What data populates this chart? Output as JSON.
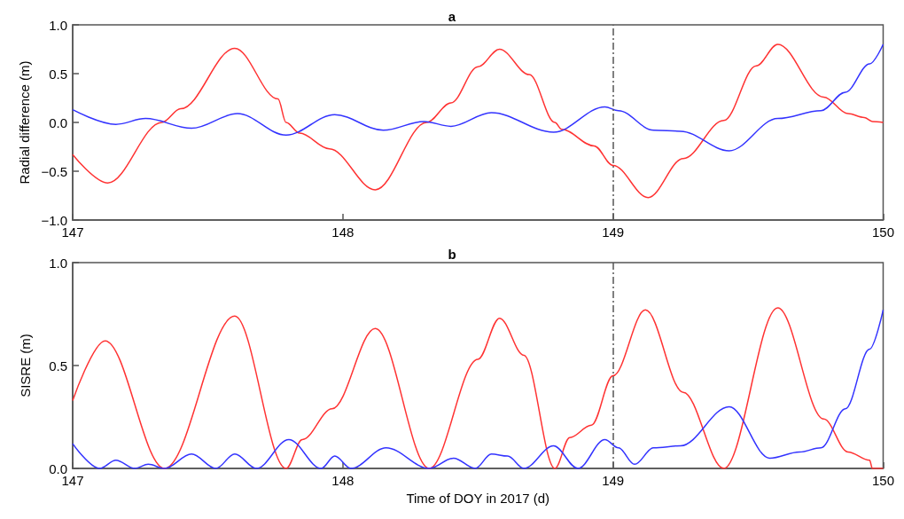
{
  "chart_data": [
    {
      "type": "line",
      "title": "a",
      "ylabel": "Radial difference (m)",
      "xlim": [
        147,
        150
      ],
      "xticks": [
        147,
        148,
        149,
        150
      ],
      "ylim": [
        -1,
        1
      ],
      "yticks": [
        {
          "value": -1,
          "label": "−1.0"
        },
        {
          "value": -0.5,
          "label": "−0.5"
        },
        {
          "value": 0,
          "label": "0.0"
        },
        {
          "value": 0.5,
          "label": "0.5"
        },
        {
          "value": 1,
          "label": "1.0"
        }
      ],
      "grid": false,
      "marker": "none",
      "line_style": "solid",
      "ref_lines": [
        {
          "axis": "x",
          "value": 149,
          "color": "#555555",
          "line_style": "dashed"
        }
      ],
      "series": [
        {
          "color": "#ff3333",
          "x": [
            147,
            147.13,
            147.33,
            147.4,
            147.6,
            147.76,
            147.79,
            147.84,
            147.95,
            148.12,
            148.31,
            148.4,
            148.5,
            148.58,
            148.69,
            148.785,
            148.81,
            148.93,
            149,
            149.13,
            149.26,
            149.41,
            149.53,
            149.61,
            149.78,
            149.87,
            149.93,
            149.96,
            150
          ],
          "values": [
            -0.33,
            -0.62,
            0,
            0.14,
            0.76,
            0.24,
            0,
            -0.11,
            -0.27,
            -0.69,
            0,
            0.2,
            0.57,
            0.75,
            0.49,
            0,
            -0.07,
            -0.24,
            -0.44,
            -0.77,
            -0.37,
            0.02,
            0.58,
            0.8,
            0.26,
            0.09,
            0.05,
            0.01,
            0
          ]
        },
        {
          "color": "#3333ff",
          "x": [
            147,
            147.16,
            147.27,
            147.44,
            147.61,
            147.79,
            147.97,
            148.15,
            148.3,
            148.4,
            148.55,
            148.78,
            148.97,
            149.02,
            149.15,
            149.25,
            149.43,
            149.61,
            149.77,
            149.86,
            149.95,
            150
          ],
          "values": [
            0.13,
            -0.02,
            0.04,
            -0.06,
            0.09,
            -0.13,
            0.08,
            -0.08,
            0.01,
            -0.04,
            0.1,
            -0.1,
            0.16,
            0.12,
            -0.08,
            -0.09,
            -0.29,
            0.04,
            0.12,
            0.31,
            0.6,
            0.8
          ]
        }
      ]
    },
    {
      "type": "line",
      "title": "b",
      "xlabel": "Time of DOY in 2017 (d)",
      "ylabel": "SISRE (m)",
      "xlim": [
        147,
        150
      ],
      "xticks": [
        147,
        148,
        149,
        150
      ],
      "ylim": [
        0,
        1
      ],
      "yticks": [
        {
          "value": 0,
          "label": "0.0"
        },
        {
          "value": 0.5,
          "label": "0.5"
        },
        {
          "value": 1,
          "label": "1.0"
        }
      ],
      "grid": false,
      "marker": "none",
      "line_style": "solid",
      "ref_lines": [
        {
          "axis": "x",
          "value": 149,
          "color": "#555555",
          "line_style": "dashed"
        }
      ],
      "series": [
        {
          "color": "#ff3333",
          "x": [
            147,
            147.12,
            147.34,
            147.6,
            147.79,
            147.85,
            147.96,
            148.12,
            148.32,
            148.5,
            148.58,
            148.67,
            148.785,
            148.84,
            148.92,
            149,
            149.12,
            149.26,
            149.41,
            149.61,
            149.78,
            149.87,
            149.95,
            149.96,
            150
          ],
          "values": [
            0.33,
            0.62,
            0,
            0.74,
            0,
            0.14,
            0.29,
            0.68,
            0,
            0.53,
            0.73,
            0.55,
            0,
            0.15,
            0.21,
            0.45,
            0.77,
            0.37,
            0,
            0.78,
            0.24,
            0.08,
            0.04,
            0,
            0
          ]
        },
        {
          "color": "#3333ff",
          "x": [
            147,
            147.1,
            147.16,
            147.23,
            147.28,
            147.34,
            147.44,
            147.53,
            147.6,
            147.68,
            147.8,
            147.92,
            147.97,
            148.03,
            148.16,
            148.32,
            148.41,
            148.49,
            148.55,
            148.61,
            148.67,
            148.78,
            148.87,
            148.97,
            149.02,
            149.08,
            149.15,
            149.25,
            149.43,
            149.58,
            149.69,
            149.77,
            149.86,
            149.95,
            150
          ],
          "values": [
            0.12,
            0,
            0.04,
            0,
            0.02,
            0,
            0.07,
            0,
            0.07,
            0,
            0.14,
            0,
            0.06,
            0,
            0.1,
            0,
            0.05,
            0,
            0.07,
            0.06,
            0,
            0.11,
            0,
            0.14,
            0.1,
            0.02,
            0.1,
            0.11,
            0.3,
            0.05,
            0.08,
            0.1,
            0.29,
            0.58,
            0.77
          ]
        }
      ]
    }
  ]
}
